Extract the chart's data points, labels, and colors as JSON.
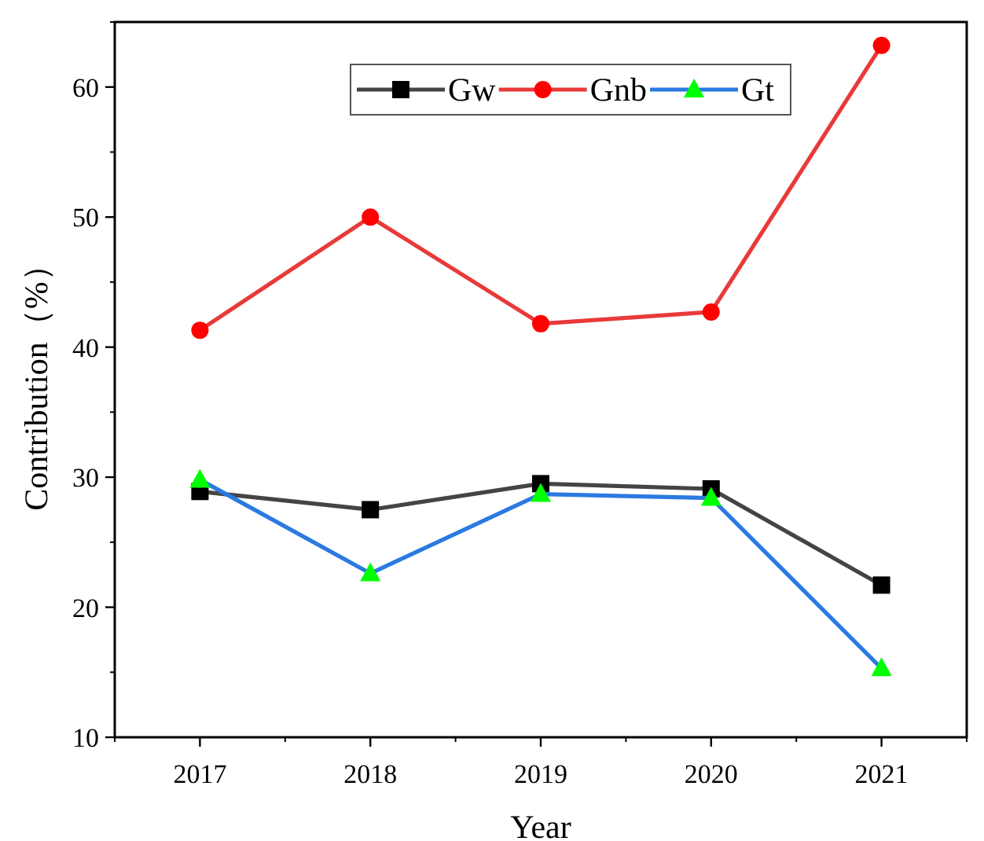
{
  "chart_data": {
    "type": "line",
    "xlabel": "Year",
    "ylabel": "Contribution（%）",
    "x": [
      2017,
      2018,
      2019,
      2020,
      2021
    ],
    "xlim": [
      2016.5,
      2021.5
    ],
    "xticks": [
      2017,
      2018,
      2019,
      2020,
      2021
    ],
    "ylim": [
      10,
      65
    ],
    "yticks": [
      10,
      20,
      30,
      40,
      50,
      60
    ],
    "legend": "top",
    "grid": false,
    "series": [
      {
        "name": "Gw",
        "color": "#444444",
        "colors": [
          "#000000",
          "#000000",
          "#000000",
          "#000000",
          "#000000"
        ],
        "marker": "square",
        "values": [
          28.9,
          27.5,
          29.5,
          29.1,
          21.7
        ]
      },
      {
        "name": "Gnb",
        "color": "#e83a3a",
        "colors": [
          "#ff0000",
          "#ff0000",
          "#ff0000",
          "#ff0000",
          "#ff0000"
        ],
        "marker": "circle",
        "values": [
          41.3,
          50.0,
          41.8,
          42.7,
          63.2
        ]
      },
      {
        "name": "Gt",
        "color": "#2a7ae2",
        "colors": [
          "#00ff00",
          "#00ff00",
          "#00ff00",
          "#00ff00",
          "#00ff00"
        ],
        "marker": "triangle",
        "values": [
          29.8,
          22.6,
          28.7,
          28.4,
          15.3
        ]
      }
    ]
  }
}
